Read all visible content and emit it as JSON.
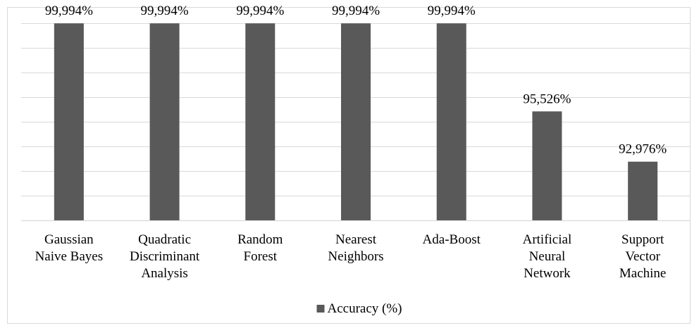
{
  "chart_data": {
    "type": "bar",
    "categories": [
      [
        "Gaussian",
        "Naive Bayes"
      ],
      [
        "Quadratic",
        "Discriminant",
        "Analysis"
      ],
      [
        "Random",
        "Forest"
      ],
      [
        "Nearest",
        "Neighbors"
      ],
      [
        "Ada-Boost"
      ],
      [
        "Artificial",
        "Neural",
        "Network"
      ],
      [
        "Support",
        "Vector",
        "Machine"
      ]
    ],
    "series": [
      {
        "name": "Accuracy (%)",
        "values": [
          99.994,
          99.994,
          99.994,
          99.994,
          99.994,
          95.526,
          92.976
        ],
        "labels": [
          "99,994%",
          "99,994%",
          "99,994%",
          "99,994%",
          "99,994%",
          "95,526%",
          "92,976%"
        ]
      }
    ],
    "ylim": [
      90,
      100
    ],
    "grid": true,
    "legend": "bottom",
    "colors": {
      "bar": "#595959",
      "grid": "#d9d9d9"
    }
  }
}
